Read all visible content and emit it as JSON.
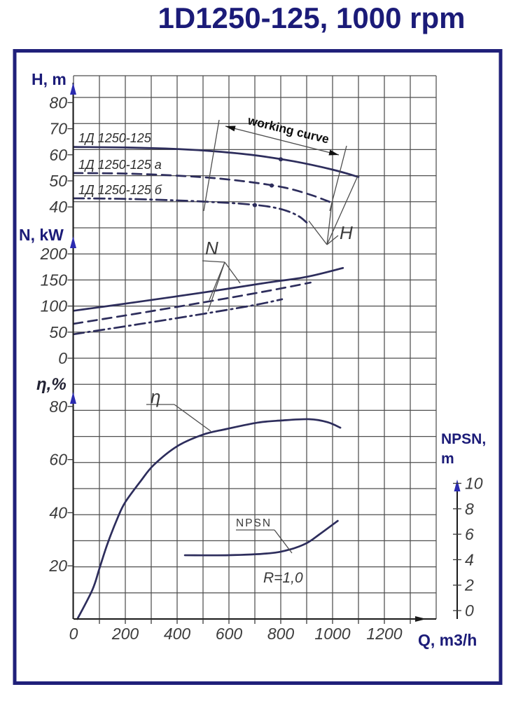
{
  "title": "1D1250-125, 1000 rpm",
  "axis_labels": {
    "head": "H, m",
    "power": "N, kW",
    "efficiency": "η,%",
    "npsn_line1": "NPSN,",
    "npsn_line2": "m",
    "flow": "Q, m3/h"
  },
  "annotations": {
    "working_curve": "working curve",
    "head_pointer": "H",
    "power_pointer": "N",
    "efficiency_pointer": "η",
    "npsn_pointer": "NPSN",
    "impeller_note": "R=1,0"
  },
  "colors": {
    "navy": "#1b1b78",
    "border": "#20207a",
    "curve": "#2d2d5c",
    "grid": "#4f4f4f",
    "arrow_blue": "#2b2bb0",
    "textdark": "#3c3c3c"
  },
  "chart_data": {
    "type": "line",
    "title": "1D1250-125, 1000 rpm",
    "xlabel": "Q, m3/h",
    "x_ticks": [
      0,
      200,
      400,
      600,
      800,
      1000,
      1200
    ],
    "x_max": 1400,
    "grid": true,
    "working_range_q": [
      530,
      1030
    ],
    "panels": [
      {
        "id": "head",
        "ylabel": "H, m",
        "y_ticks": [
          80,
          70,
          60,
          50,
          40
        ],
        "series": [
          {
            "name": "1Д 1250-125",
            "line": "solid",
            "points": [
              [
                0,
                63
              ],
              [
                200,
                62.8
              ],
              [
                400,
                62.2
              ],
              [
                550,
                61.3
              ],
              [
                700,
                59.8
              ],
              [
                850,
                57.5
              ],
              [
                1000,
                54.3
              ],
              [
                1100,
                51.5
              ]
            ]
          },
          {
            "name": "1Д 1250-125 а",
            "line": "dashed",
            "points": [
              [
                0,
                53
              ],
              [
                200,
                52.8
              ],
              [
                400,
                52
              ],
              [
                550,
                51
              ],
              [
                700,
                49.3
              ],
              [
                820,
                47.3
              ],
              [
                920,
                44.5
              ],
              [
                1000,
                41.5
              ]
            ]
          },
          {
            "name": "1Д 1250-125 б",
            "line": "dashdot",
            "points": [
              [
                0,
                43.3
              ],
              [
                200,
                43.1
              ],
              [
                400,
                42.5
              ],
              [
                550,
                41.8
              ],
              [
                650,
                41.2
              ],
              [
                750,
                40.2
              ],
              [
                820,
                38.6
              ],
              [
                870,
                36.4
              ],
              [
                900,
                34
              ]
            ]
          }
        ],
        "bep_dots": [
          {
            "series": 0,
            "q": 800
          },
          {
            "series": 1,
            "q": 765
          },
          {
            "series": 2,
            "q": 700
          }
        ]
      },
      {
        "id": "power",
        "ylabel": "N, kW",
        "y_ticks": [
          200,
          150,
          100,
          50,
          0
        ],
        "series": [
          {
            "name": "1Д 1250-125",
            "line": "solid",
            "points": [
              [
                0,
                91
              ],
              [
                250,
                108
              ],
              [
                500,
                126
              ],
              [
                750,
                145
              ],
              [
                900,
                156
              ],
              [
                1040,
                173
              ]
            ]
          },
          {
            "name": "1Д 1250-125 а",
            "line": "dashed",
            "points": [
              [
                0,
                66
              ],
              [
                250,
                86
              ],
              [
                500,
                107
              ],
              [
                750,
                129
              ],
              [
                915,
                145
              ]
            ]
          },
          {
            "name": "1Д 1250-125 б",
            "line": "dashdot",
            "points": [
              [
                0,
                46
              ],
              [
                250,
                65
              ],
              [
                500,
                85
              ],
              [
                700,
                102
              ],
              [
                805,
                113
              ]
            ]
          }
        ]
      },
      {
        "id": "efficiency",
        "ylabel": "η, %",
        "y_ticks": [
          80,
          60,
          40,
          20
        ],
        "series": [
          {
            "name": "η",
            "line": "solid",
            "points": [
              [
                15,
                0
              ],
              [
                73,
                11
              ],
              [
                100,
                19
              ],
              [
                130,
                28
              ],
              [
                170,
                38
              ],
              [
                200,
                44
              ],
              [
                260,
                52
              ],
              [
                310,
                58
              ],
              [
                400,
                65
              ],
              [
                500,
                69.4
              ],
              [
                590,
                71.5
              ],
              [
                710,
                73.9
              ],
              [
                800,
                74.7
              ],
              [
                910,
                75.2
              ],
              [
                980,
                74.1
              ],
              [
                1030,
                72
              ]
            ]
          }
        ]
      },
      {
        "id": "npsn",
        "ylabel": "NPSN, m",
        "y_ticks": [
          10,
          8,
          6,
          4,
          2,
          0
        ],
        "note": "R=1,0",
        "series": [
          {
            "name": "NPSN",
            "line": "solid",
            "points": [
              [
                430,
                4.35
              ],
              [
                600,
                4.35
              ],
              [
                755,
                4.5
              ],
              [
                835,
                4.8
              ],
              [
                900,
                5.3
              ],
              [
                950,
                6.0
              ],
              [
                1020,
                7.05
              ]
            ]
          }
        ]
      }
    ]
  }
}
